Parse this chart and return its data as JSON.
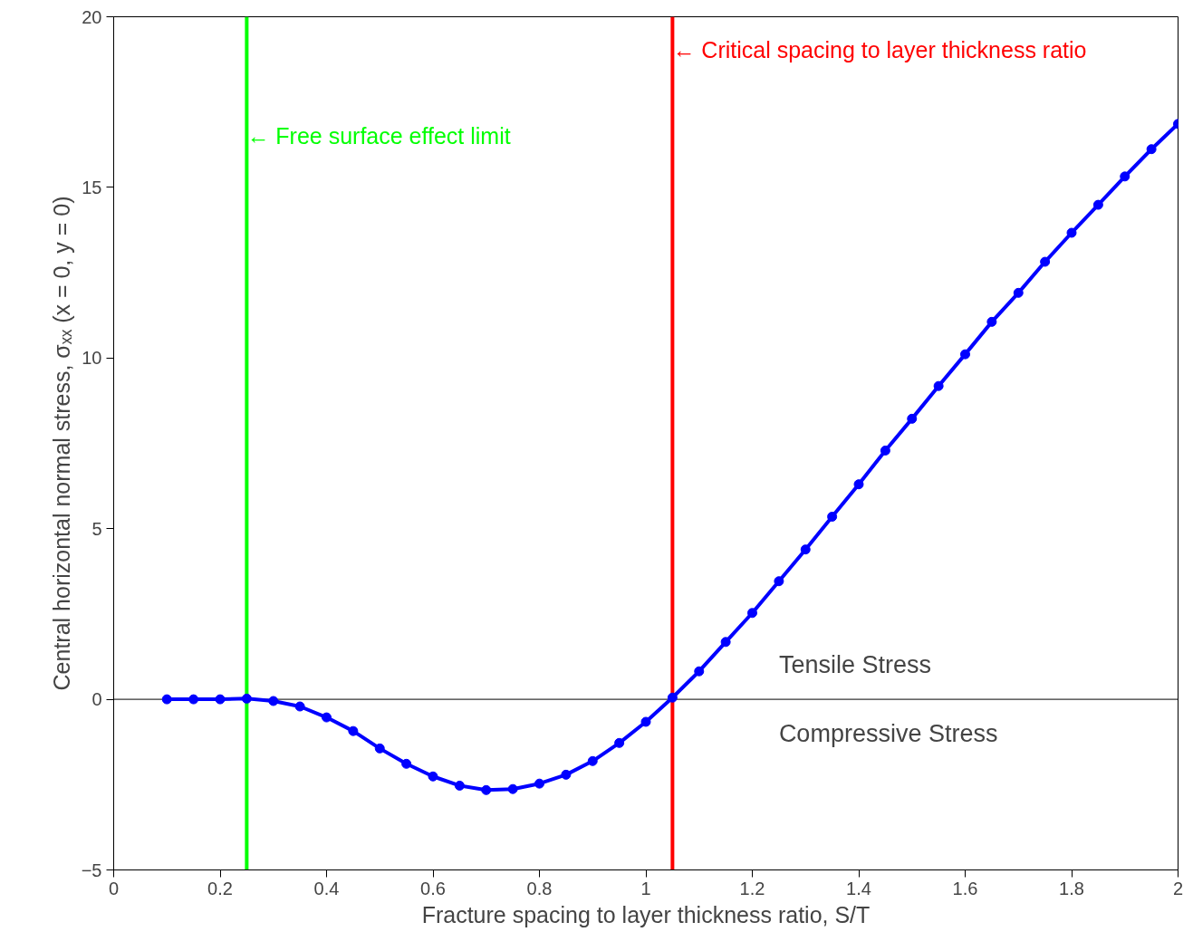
{
  "chart_data": {
    "type": "line",
    "xlabel": "Fracture spacing to layer thickness ratio, S/T",
    "ylabel": "Central horizontal normal stress, σₓₓ (x = 0, y = 0)",
    "x": [
      0.1,
      0.15,
      0.2,
      0.25,
      0.3,
      0.35,
      0.4,
      0.45,
      0.5,
      0.55,
      0.6,
      0.65,
      0.7,
      0.75,
      0.8,
      0.85,
      0.9,
      0.95,
      1.0,
      1.05,
      1.1,
      1.15,
      1.2,
      1.25,
      1.3,
      1.35,
      1.4,
      1.45,
      1.5,
      1.55,
      1.6,
      1.65,
      1.7,
      1.75,
      1.8,
      1.85,
      1.9,
      1.95,
      2.0
    ],
    "series": [
      {
        "color": "#0000ff",
        "values": [
          0,
          0,
          0,
          0.02,
          -0.05,
          -0.21,
          -0.53,
          -0.93,
          -1.44,
          -1.89,
          -2.26,
          -2.53,
          -2.66,
          -2.63,
          -2.47,
          -2.21,
          -1.81,
          -1.28,
          -0.66,
          0.05,
          0.82,
          1.68,
          2.53,
          3.46,
          4.39,
          5.35,
          6.3,
          7.29,
          8.22,
          9.18,
          10.11,
          11.06,
          11.91,
          12.82,
          13.67,
          14.49,
          15.32,
          16.12,
          16.86
        ]
      }
    ],
    "marker": "circle",
    "line_style": "solid",
    "grid": false,
    "xlim": [
      0,
      2
    ],
    "xticks": [
      0,
      0.2,
      0.4,
      0.6,
      0.8,
      1,
      1.2,
      1.4,
      1.6,
      1.8,
      2
    ],
    "ylim": [
      -5,
      20
    ],
    "yticks": [
      -5,
      0,
      5,
      10,
      15,
      20
    ],
    "ref_lines": [
      {
        "axis": "x",
        "value": 0.25,
        "label": "← Free surface effect limit",
        "color": "#00ff00"
      },
      {
        "axis": "x",
        "value": 1.05,
        "label": "← Critical spacing to layer thickness ratio",
        "color": "#ff0000"
      },
      {
        "axis": "y",
        "value": 0,
        "color": "#000000"
      }
    ],
    "annotations": [
      "Tensile Stress",
      "Compressive Stress"
    ]
  }
}
